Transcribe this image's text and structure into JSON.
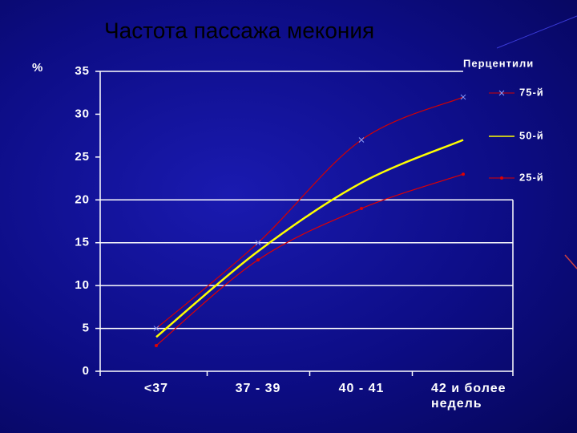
{
  "chart_data": {
    "type": "line",
    "title": "Частота пассажа мекония",
    "y_label": "%",
    "legend_title": "Перцентили",
    "categories": [
      "<37",
      "37 - 39",
      "40 - 41",
      "42 и более недель"
    ],
    "series": [
      {
        "name": "75-й",
        "color": "#d40000",
        "marker": "x",
        "values": [
          5,
          15,
          27,
          32
        ]
      },
      {
        "name": "50-й",
        "color": "#ffff00",
        "marker": "none",
        "values": [
          4,
          14,
          22,
          27
        ]
      },
      {
        "name": "25-й",
        "color": "#e00000",
        "marker": "dot",
        "values": [
          3,
          13,
          19,
          23
        ]
      }
    ],
    "ylim": [
      0,
      35
    ],
    "yticks": [
      0,
      5,
      10,
      15,
      20,
      25,
      30,
      35
    ],
    "grid": true,
    "legend": "right"
  }
}
